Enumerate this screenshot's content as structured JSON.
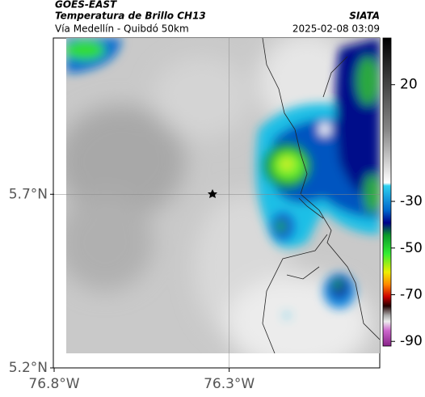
{
  "header": {
    "title": "GOES-EAST",
    "subtitle": "Temperatura de Brillo CH13",
    "route": "Vía Medellín - Quibdó 50km",
    "source": "SIATA",
    "datetime": "2025-02-08 03:09"
  },
  "map": {
    "xlim": [
      -76.8,
      -75.87
    ],
    "ylim": [
      5.2,
      6.15
    ],
    "xticks": [
      {
        "value": -76.8,
        "label": "76.8°W"
      },
      {
        "value": -76.3,
        "label": "76.3°W"
      }
    ],
    "yticks": [
      {
        "value": 5.7,
        "label": "5.7°N"
      },
      {
        "value": 5.2,
        "label": "5.2°N"
      }
    ]
  },
  "colorbar": {
    "clim": [
      -92,
      40
    ],
    "ticks": [
      20,
      -30,
      -50,
      -70,
      -90
    ]
  }
}
